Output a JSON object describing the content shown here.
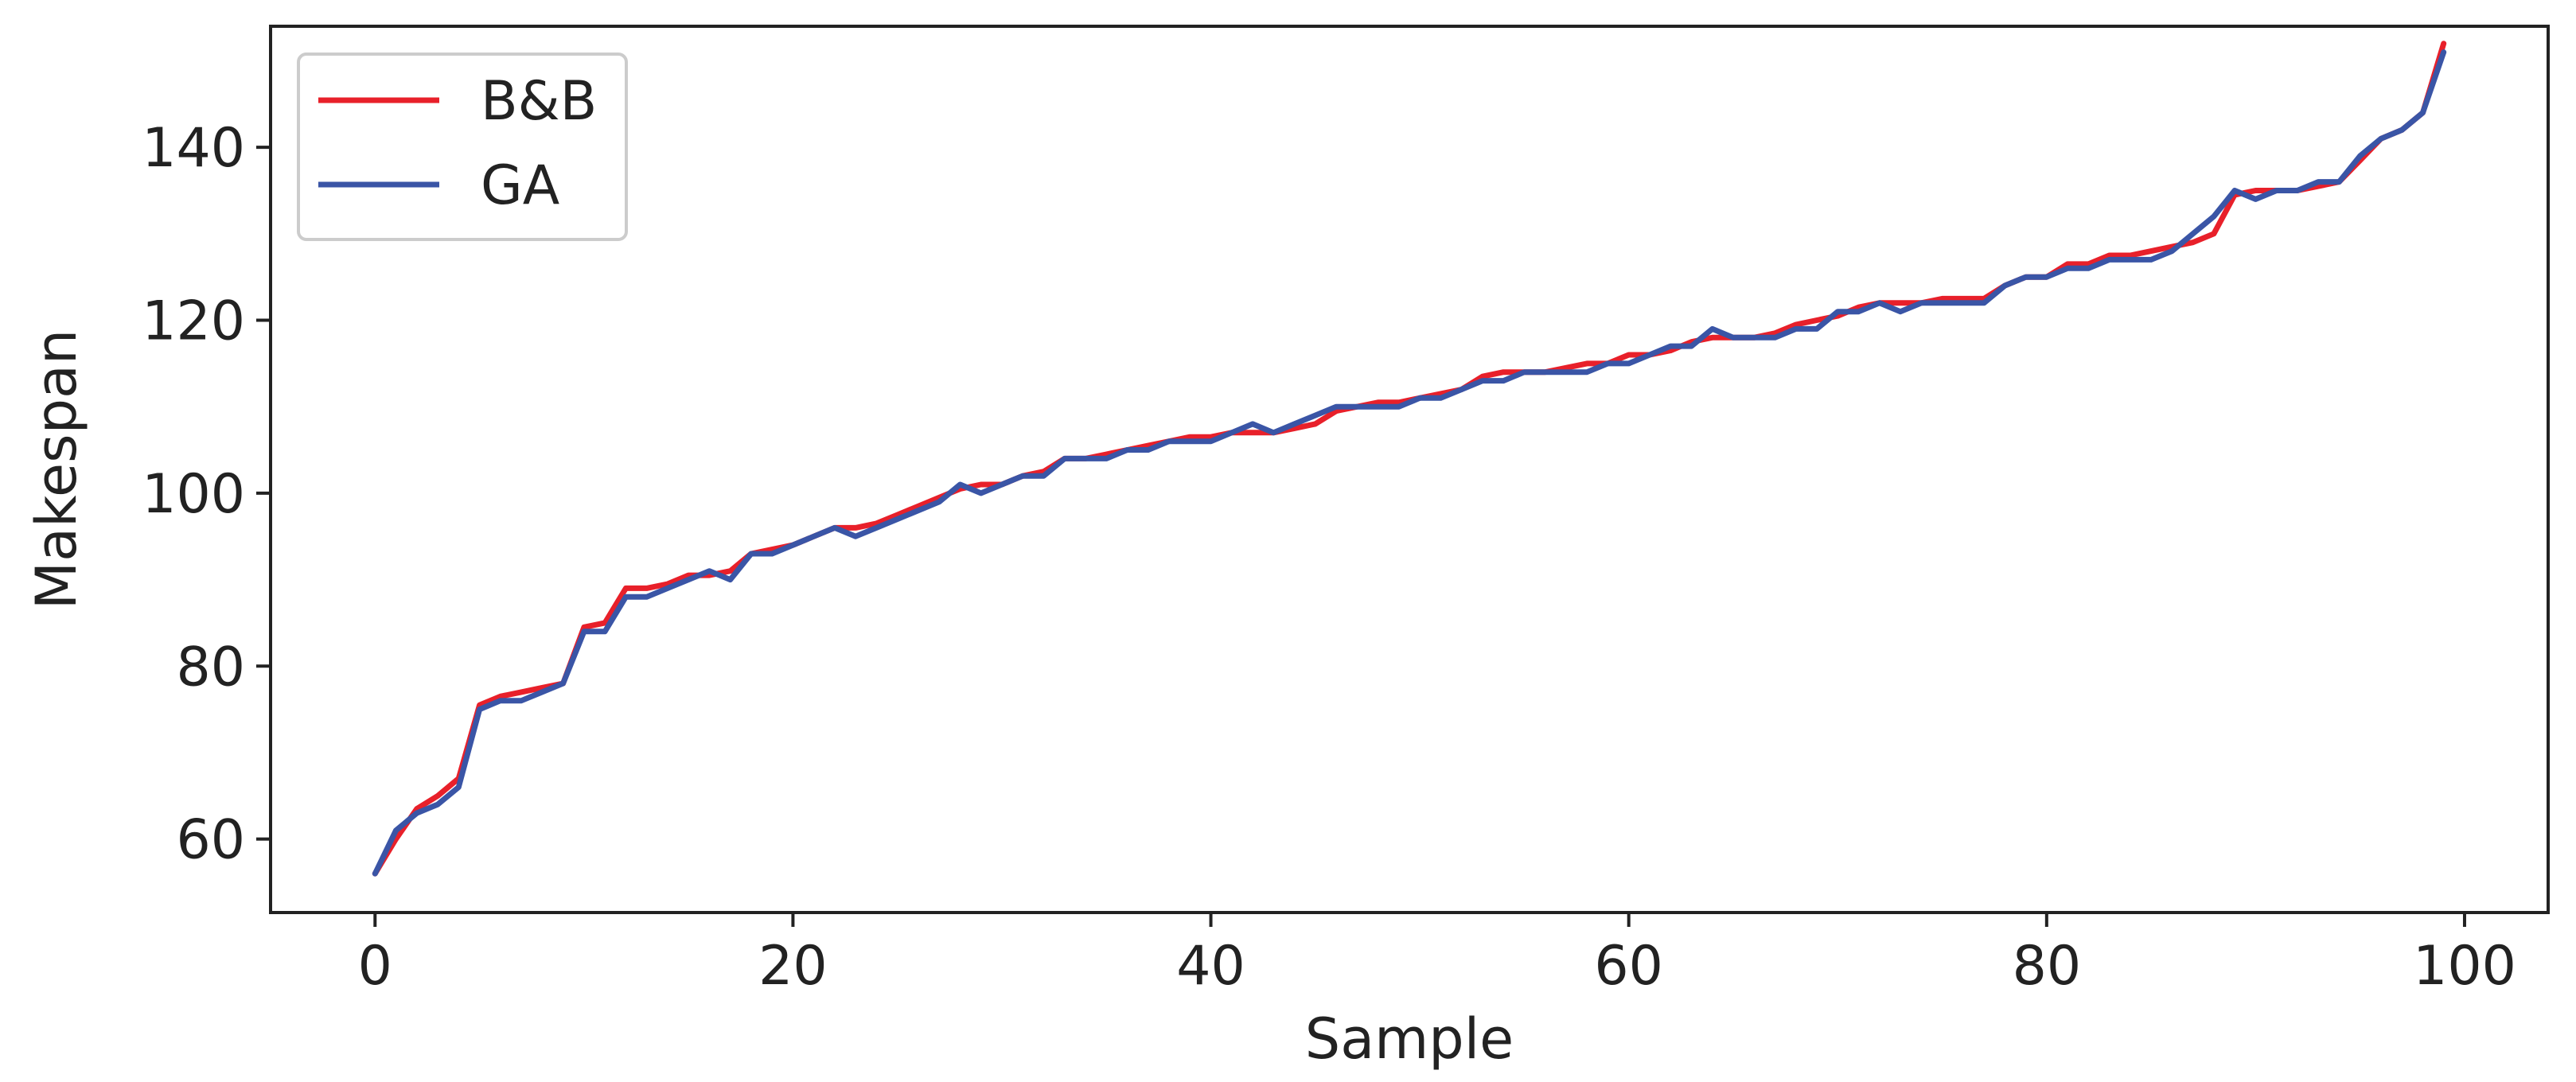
{
  "chart_data": {
    "type": "line",
    "xlabel": "Sample",
    "ylabel": "Makespan",
    "xlim": [
      -5,
      104
    ],
    "ylim": [
      51.5,
      154
    ],
    "xticks": [
      0,
      20,
      40,
      60,
      80,
      100
    ],
    "xtick_labels": [
      "0",
      "20",
      "40",
      "60",
      "80",
      "100"
    ],
    "yticks": [
      60,
      80,
      100,
      120,
      140
    ],
    "ytick_labels": [
      "60",
      "80",
      "100",
      "120",
      "140"
    ],
    "grid": false,
    "legend_position": "top-left",
    "series": [
      {
        "name": "B&B",
        "color": "#e8202a",
        "x": [
          0,
          1,
          2,
          3,
          4,
          5,
          6,
          7,
          8,
          9,
          10,
          11,
          12,
          13,
          14,
          15,
          16,
          17,
          18,
          19,
          20,
          21,
          22,
          23,
          24,
          25,
          26,
          27,
          28,
          29,
          30,
          31,
          32,
          33,
          34,
          35,
          36,
          37,
          38,
          39,
          40,
          41,
          42,
          43,
          44,
          45,
          46,
          47,
          48,
          49,
          50,
          51,
          52,
          53,
          54,
          55,
          56,
          57,
          58,
          59,
          60,
          61,
          62,
          63,
          64,
          65,
          66,
          67,
          68,
          69,
          70,
          71,
          72,
          73,
          74,
          75,
          76,
          77,
          78,
          79,
          80,
          81,
          82,
          83,
          84,
          85,
          86,
          87,
          88,
          89,
          90,
          91,
          92,
          93,
          94,
          95,
          96,
          97,
          98,
          99
        ],
        "values": [
          56,
          60,
          63.5,
          65,
          67,
          75.5,
          76.5,
          77,
          77.5,
          78,
          84.5,
          85,
          89,
          89,
          89.5,
          90.5,
          90.5,
          91,
          93,
          93.5,
          94,
          95,
          96,
          96,
          96.5,
          97.5,
          98.5,
          99.5,
          100.5,
          101,
          101,
          102,
          102.5,
          104,
          104,
          104.5,
          105,
          105.5,
          106,
          106.5,
          106.5,
          107,
          107,
          107,
          107.5,
          108,
          109.5,
          110,
          110.5,
          110.5,
          111,
          111.5,
          112,
          113.5,
          114,
          114,
          114,
          114.5,
          115,
          115,
          116,
          116,
          116.5,
          117.5,
          118,
          118,
          118,
          118.5,
          119.5,
          120,
          120.5,
          121.5,
          122,
          122,
          122,
          122.5,
          122.5,
          122.5,
          124,
          125,
          125,
          126.5,
          126.5,
          127.5,
          127.5,
          128,
          128.5,
          129,
          130,
          134.5,
          135,
          135,
          135,
          135.5,
          136,
          138.5,
          141,
          142,
          144,
          152
        ]
      },
      {
        "name": "GA",
        "color": "#3a55a6",
        "x": [
          0,
          1,
          2,
          3,
          4,
          5,
          6,
          7,
          8,
          9,
          10,
          11,
          12,
          13,
          14,
          15,
          16,
          17,
          18,
          19,
          20,
          21,
          22,
          23,
          24,
          25,
          26,
          27,
          28,
          29,
          30,
          31,
          32,
          33,
          34,
          35,
          36,
          37,
          38,
          39,
          40,
          41,
          42,
          43,
          44,
          45,
          46,
          47,
          48,
          49,
          50,
          51,
          52,
          53,
          54,
          55,
          56,
          57,
          58,
          59,
          60,
          61,
          62,
          63,
          64,
          65,
          66,
          67,
          68,
          69,
          70,
          71,
          72,
          73,
          74,
          75,
          76,
          77,
          78,
          79,
          80,
          81,
          82,
          83,
          84,
          85,
          86,
          87,
          88,
          89,
          90,
          91,
          92,
          93,
          94,
          95,
          96,
          97,
          98,
          99
        ],
        "values": [
          56,
          61,
          63,
          64,
          66,
          75,
          76,
          76,
          77,
          78,
          84,
          84,
          88,
          88,
          89,
          90,
          91,
          90,
          93,
          93,
          94,
          95,
          96,
          95,
          96,
          97,
          98,
          99,
          101,
          100,
          101,
          102,
          102,
          104,
          104,
          104,
          105,
          105,
          106,
          106,
          106,
          107,
          108,
          107,
          108,
          109,
          110,
          110,
          110,
          110,
          111,
          111,
          112,
          113,
          113,
          114,
          114,
          114,
          114,
          115,
          115,
          116,
          117,
          117,
          119,
          118,
          118,
          118,
          119,
          119,
          121,
          121,
          122,
          121,
          122,
          122,
          122,
          122,
          124,
          125,
          125,
          126,
          126,
          127,
          127,
          127,
          128,
          130,
          132,
          135,
          134,
          135,
          135,
          136,
          136,
          139,
          141,
          142,
          144,
          151
        ]
      }
    ]
  }
}
